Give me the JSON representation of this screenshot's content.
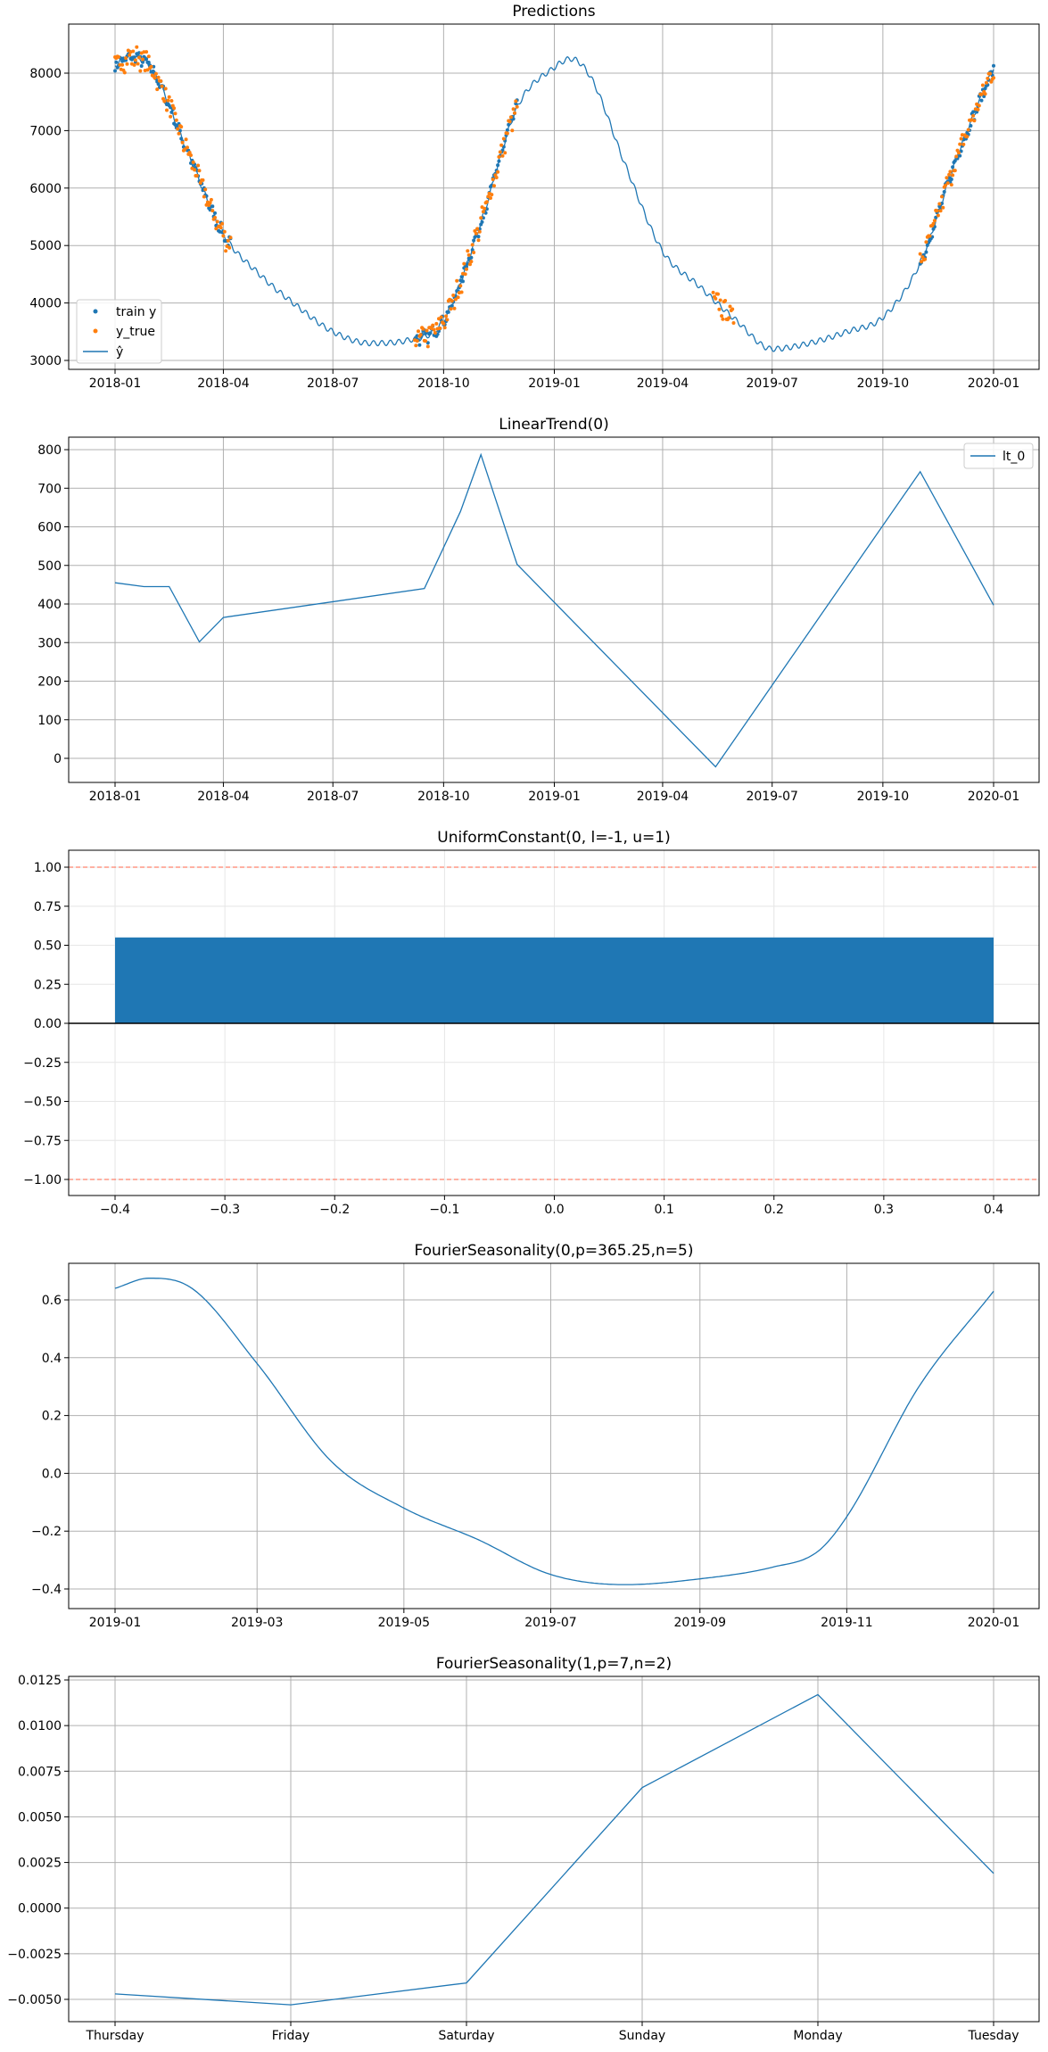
{
  "chart_data": [
    {
      "type": "line",
      "title": "Predictions",
      "xlabel": "",
      "ylabel": "",
      "x_ticks": [
        "2018-01",
        "2018-04",
        "2018-07",
        "2018-10",
        "2019-01",
        "2019-04",
        "2019-07",
        "2019-10",
        "2020-01"
      ],
      "y_ticks": [
        "3000",
        "4000",
        "5000",
        "6000",
        "7000",
        "8000"
      ],
      "ylim": [
        2900,
        8750
      ],
      "grid": true,
      "legend": "lower-left",
      "series": [
        {
          "name": "train y",
          "kind": "scatter",
          "color": "#1f77b4"
        },
        {
          "name": "y_true",
          "kind": "scatter",
          "color": "#ff7f0e"
        },
        {
          "name": "ŷ",
          "kind": "line",
          "color": "#1f77b4"
        }
      ],
      "yhat_anchors": {
        "x": [
          "2018-01-01",
          "2018-01-15",
          "2018-02-01",
          "2018-03-01",
          "2018-04-01",
          "2018-05-01",
          "2018-06-01",
          "2018-07-01",
          "2018-08-01",
          "2018-09-01",
          "2018-10-01",
          "2018-11-01",
          "2018-12-01",
          "2019-01-01",
          "2019-01-15",
          "2019-02-01",
          "2019-03-01",
          "2019-04-01",
          "2019-05-01",
          "2019-06-01",
          "2019-07-01",
          "2019-08-01",
          "2019-09-01",
          "2019-10-01",
          "2019-11-01",
          "2019-12-01",
          "2020-01-01"
        ],
        "y": [
          8150,
          8280,
          8050,
          6700,
          5200,
          4500,
          3950,
          3500,
          3300,
          3350,
          3700,
          5400,
          7400,
          8100,
          8250,
          7900,
          6400,
          4900,
          4300,
          3700,
          3200,
          3300,
          3500,
          3750,
          4700,
          6500,
          8100
        ]
      },
      "observed_windows": [
        {
          "series": "train y",
          "from": "2018-01-01",
          "to": "2018-04-07"
        },
        {
          "series": "y_true",
          "from": "2018-01-01",
          "to": "2018-04-07"
        },
        {
          "series": "train y",
          "from": "2018-09-07",
          "to": "2018-12-01"
        },
        {
          "series": "y_true",
          "from": "2018-09-07",
          "to": "2018-12-01"
        },
        {
          "series": "y_true",
          "from": "2019-05-13",
          "to": "2019-05-30"
        },
        {
          "series": "train y",
          "from": "2019-11-01",
          "to": "2020-01-01"
        },
        {
          "series": "y_true",
          "from": "2019-11-01",
          "to": "2020-01-01"
        }
      ]
    },
    {
      "type": "line",
      "title": "LinearTrend(0)",
      "xlabel": "",
      "ylabel": "",
      "x_ticks": [
        "2018-01",
        "2018-04",
        "2018-07",
        "2018-10",
        "2019-01",
        "2019-04",
        "2019-07",
        "2019-10",
        "2020-01"
      ],
      "y_ticks": [
        "0",
        "100",
        "200",
        "300",
        "400",
        "500",
        "600",
        "700",
        "800"
      ],
      "ylim": [
        -60,
        820
      ],
      "grid": true,
      "legend": "top-right",
      "series": [
        {
          "name": "lt_0",
          "color": "#1f77b4",
          "x": [
            "2018-01-01",
            "2018-01-25",
            "2018-02-15",
            "2018-03-12",
            "2018-04-01",
            "2018-09-15",
            "2018-10-15",
            "2018-11-01",
            "2018-12-01",
            "2019-05-15",
            "2019-11-01",
            "2020-01-01"
          ],
          "y": [
            455,
            445,
            445,
            302,
            365,
            440,
            640,
            787,
            503,
            -22,
            743,
            397
          ]
        }
      ]
    },
    {
      "type": "bar",
      "title": "UniformConstant(0, l=-1, u=1)",
      "xlabel": "",
      "ylabel": "",
      "x_ticks": [
        "−0.4",
        "−0.3",
        "−0.2",
        "−0.1",
        "0.0",
        "0.1",
        "0.2",
        "0.3",
        "0.4"
      ],
      "y_ticks": [
        "−1.00",
        "−0.75",
        "−0.50",
        "−0.25",
        "0.00",
        "0.25",
        "0.50",
        "0.75",
        "1.00"
      ],
      "xlim": [
        -0.44,
        0.44
      ],
      "ylim": [
        -1.1,
        1.1
      ],
      "grid": true,
      "bars": [
        {
          "x0": -0.4,
          "x1": 0.4,
          "value": 0.55,
          "color": "#1f77b4"
        }
      ],
      "hlines": [
        {
          "y": 1.0,
          "color": "#ff6347",
          "style": "dashed"
        },
        {
          "y": -1.0,
          "color": "#ff6347",
          "style": "dashed"
        },
        {
          "y": 0.0,
          "color": "#000000",
          "style": "solid"
        }
      ]
    },
    {
      "type": "line",
      "title": "FourierSeasonality(0,p=365.25,n=5)",
      "xlabel": "",
      "ylabel": "",
      "x_ticks": [
        "2019-01",
        "2019-03",
        "2019-05",
        "2019-07",
        "2019-09",
        "2019-11",
        "2020-01"
      ],
      "y_ticks": [
        "−0.4",
        "−0.2",
        "0.0",
        "0.2",
        "0.4",
        "0.6"
      ],
      "ylim": [
        -0.43,
        0.72
      ],
      "grid": true,
      "series": [
        {
          "name": "",
          "color": "#1f77b4",
          "x": [
            "2019-01-01",
            "2019-01-15",
            "2019-02-01",
            "2019-03-01",
            "2019-04-01",
            "2019-05-01",
            "2019-06-01",
            "2019-07-01",
            "2019-08-01",
            "2019-09-01",
            "2019-10-01",
            "2019-10-20",
            "2019-11-01",
            "2019-12-01",
            "2020-01-01"
          ],
          "y": [
            0.64,
            0.675,
            0.645,
            0.38,
            0.04,
            -0.12,
            -0.23,
            -0.35,
            -0.385,
            -0.365,
            -0.325,
            -0.27,
            -0.15,
            0.3,
            0.63
          ]
        }
      ]
    },
    {
      "type": "line",
      "title": "FourierSeasonality(1,p=7,n=2)",
      "xlabel": "",
      "ylabel": "",
      "categories": [
        "Thursday",
        "Friday",
        "Saturday",
        "Sunday",
        "Monday",
        "Tuesday"
      ],
      "y_ticks": [
        "−0.0050",
        "−0.0025",
        "0.0000",
        "0.0025",
        "0.0050",
        "0.0075",
        "0.0100",
        "0.0125"
      ],
      "ylim": [
        -0.0062,
        0.0128
      ],
      "grid": true,
      "series": [
        {
          "name": "",
          "color": "#1f77b4",
          "values": [
            -0.0047,
            -0.0053,
            -0.0041,
            0.0066,
            0.0117,
            0.0019
          ]
        }
      ]
    }
  ]
}
